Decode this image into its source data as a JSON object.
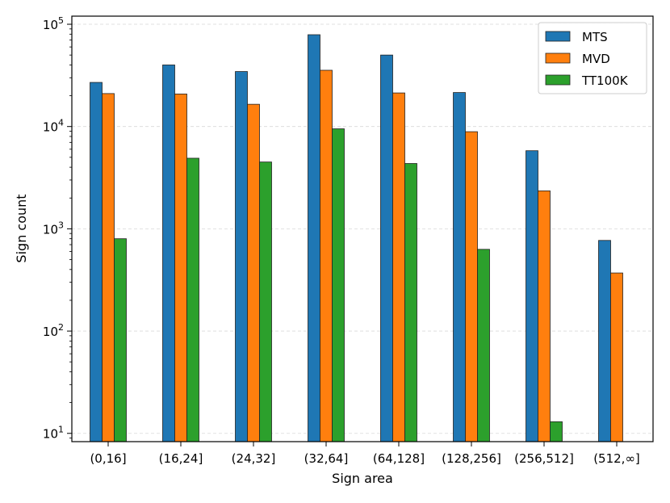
{
  "chart_data": {
    "type": "bar",
    "xlabel": "Sign area",
    "ylabel": "Sign count",
    "yscale": "log",
    "ylim": [
      8.3,
      120000
    ],
    "grid": "horizontal-dashed",
    "legend_position": "top-right",
    "categories": [
      "(0,16]",
      "(16,24]",
      "(24,32]",
      "(32,64]",
      "(64,128]",
      "(128,256]",
      "(256,512]",
      "(512,∞]"
    ],
    "series": [
      {
        "name": "MTS",
        "color": "#1f77b4",
        "values": [
          27000,
          40000,
          34500,
          79000,
          50000,
          21500,
          5800,
          770
        ]
      },
      {
        "name": "MVD",
        "color": "#ff7f0e",
        "values": [
          21000,
          20800,
          16500,
          35500,
          21300,
          8900,
          2350,
          370
        ]
      },
      {
        "name": "TT100K",
        "color": "#2ca02c",
        "values": [
          800,
          4900,
          4500,
          9500,
          4350,
          630,
          13,
          null
        ]
      }
    ],
    "yticks": [
      {
        "value": 10,
        "base": "10",
        "exp": "1"
      },
      {
        "value": 100,
        "base": "10",
        "exp": "2"
      },
      {
        "value": 1000,
        "base": "10",
        "exp": "3"
      },
      {
        "value": 10000,
        "base": "10",
        "exp": "4"
      },
      {
        "value": 100000,
        "base": "10",
        "exp": "5"
      }
    ]
  }
}
